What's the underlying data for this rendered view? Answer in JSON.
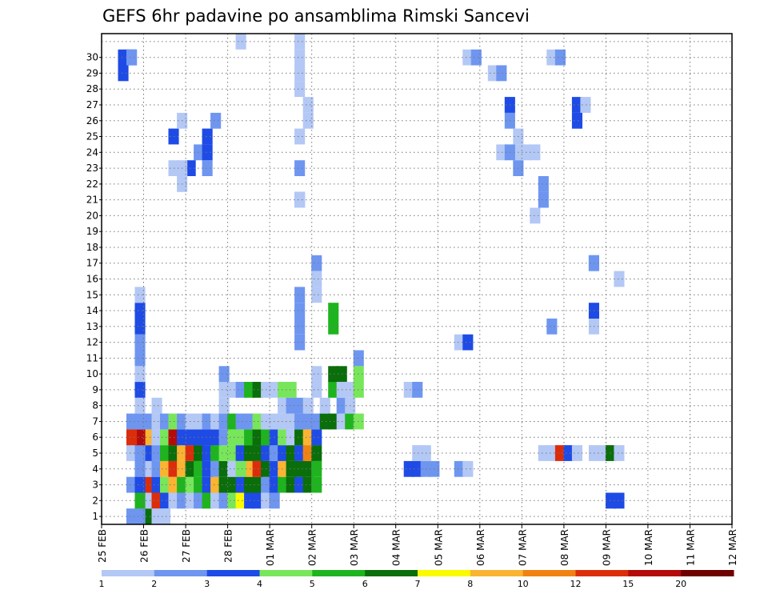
{
  "chart_data": {
    "type": "heatmap",
    "title": "GEFS 6hr padavine po ansamblima Rimski Sancevi",
    "xlabel": "",
    "ylabel": "",
    "x_ticks": [
      "25 FEB",
      "26 FEB",
      "27 FEB",
      "28 FEB",
      "01 MAR",
      "02 MAR",
      "03 MAR",
      "04 MAR",
      "05 MAR",
      "06 MAR",
      "07 MAR",
      "08 MAR",
      "09 MAR",
      "10 MAR",
      "11 MAR",
      "12 MAR"
    ],
    "y_ticks": [
      1,
      2,
      3,
      4,
      5,
      6,
      7,
      8,
      9,
      10,
      11,
      12,
      13,
      14,
      15,
      16,
      17,
      18,
      19,
      20,
      21,
      22,
      23,
      24,
      25,
      26,
      27,
      28,
      29,
      30
    ],
    "time_steps_per_day": 4,
    "members": 31,
    "grid": true,
    "colorbar": {
      "thresholds": [
        1,
        2,
        3,
        4,
        5,
        6,
        7,
        8,
        10,
        12,
        15,
        20
      ],
      "labels": [
        "1",
        "2",
        "3",
        "4",
        "5",
        "6",
        "7",
        "8",
        "10",
        "12",
        "15",
        "20"
      ],
      "colors": [
        "#b4c8f5",
        "#6e96f0",
        "#1e4be6",
        "#78e65a",
        "#1eb41e",
        "#0a6e0a",
        "#fafa00",
        "#fab432",
        "#f08214",
        "#dc2d0a",
        "#b40a0a",
        "#6e0000"
      ]
    },
    "cells": [
      [
        0,
        2,
        1
      ],
      [
        0,
        3,
        7
      ],
      [
        0,
        4,
        5
      ],
      [
        1,
        4,
        0
      ],
      [
        1,
        5,
        1
      ],
      [
        2,
        2,
        1
      ],
      [
        2,
        3,
        9
      ],
      [
        2,
        4,
        9
      ],
      [
        3,
        4,
        0
      ],
      [
        4,
        2,
        0
      ],
      [
        4,
        3,
        2
      ],
      [
        4,
        4,
        2
      ],
      [
        5,
        2,
        0
      ],
      [
        5,
        4,
        7
      ],
      [
        6,
        2,
        1
      ],
      [
        6,
        4,
        1
      ],
      [
        0,
        3,
        1
      ],
      [
        1,
        3,
        4
      ],
      [
        2,
        3,
        2
      ],
      [
        3,
        3,
        1
      ],
      [
        4,
        3,
        1
      ],
      [
        5,
        3,
        10
      ],
      [
        5,
        2,
        9
      ],
      [
        6,
        3,
        1
      ],
      [
        7,
        3,
        0
      ],
      [
        8,
        3,
        2
      ],
      [
        9,
        3,
        0
      ],
      [
        10,
        3,
        1
      ],
      [
        11,
        3,
        1
      ],
      [
        12,
        3,
        2
      ],
      [
        13,
        3,
        2
      ],
      [
        14,
        3,
        0
      ],
      [
        1,
        5,
        9
      ],
      [
        2,
        5,
        2
      ],
      [
        4,
        5,
        1
      ],
      [
        6,
        5,
        0
      ],
      [
        7,
        5,
        0
      ],
      [
        3,
        5,
        1
      ],
      [
        5,
        5,
        0
      ],
      [
        0,
        5,
        0
      ],
      [
        1,
        6,
        2
      ],
      [
        1,
        7,
        0
      ],
      [
        1,
        8,
        1
      ],
      [
        1,
        9,
        0
      ],
      [
        1,
        10,
        1
      ],
      [
        1,
        11,
        4
      ],
      [
        1,
        12,
        0
      ],
      [
        1,
        13,
        1
      ],
      [
        1,
        14,
        3
      ],
      [
        1,
        15,
        6
      ],
      [
        1,
        16,
        2
      ],
      [
        1,
        17,
        2
      ],
      [
        1,
        18,
        0
      ],
      [
        1,
        19,
        1
      ],
      [
        0,
        6,
        0
      ],
      [
        2,
        6,
        3
      ],
      [
        2,
        7,
        7
      ],
      [
        2,
        8,
        4
      ],
      [
        2,
        9,
        3
      ],
      [
        2,
        10,
        4
      ],
      [
        2,
        11,
        2
      ],
      [
        2,
        12,
        7
      ],
      [
        2,
        13,
        5
      ],
      [
        2,
        14,
        5
      ],
      [
        2,
        15,
        2
      ],
      [
        2,
        16,
        5
      ],
      [
        2,
        17,
        5
      ],
      [
        2,
        18,
        1
      ],
      [
        2,
        19,
        2
      ],
      [
        2,
        20,
        4
      ],
      [
        2,
        21,
        5
      ],
      [
        2,
        22,
        2
      ],
      [
        2,
        23,
        5
      ],
      [
        2,
        24,
        4
      ],
      [
        3,
        6,
        7
      ],
      [
        3,
        7,
        9
      ],
      [
        3,
        8,
        7
      ],
      [
        3,
        9,
        5
      ],
      [
        3,
        10,
        4
      ],
      [
        3,
        11,
        2
      ],
      [
        3,
        12,
        1
      ],
      [
        3,
        13,
        5
      ],
      [
        3,
        14,
        4
      ],
      [
        3,
        15,
        9
      ],
      [
        3,
        16,
        7
      ],
      [
        3,
        17,
        9
      ],
      [
        3,
        18,
        5
      ],
      [
        3,
        19,
        2
      ],
      [
        3,
        20,
        7
      ],
      [
        3,
        21,
        5
      ],
      [
        3,
        22,
        5
      ],
      [
        3,
        23,
        5
      ],
      [
        3,
        24,
        4
      ],
      [
        4,
        6,
        4
      ],
      [
        4,
        7,
        5
      ],
      [
        4,
        8,
        7
      ],
      [
        4,
        9,
        9
      ],
      [
        4,
        10,
        5
      ],
      [
        4,
        11,
        2
      ],
      [
        4,
        12,
        4
      ],
      [
        4,
        13,
        3
      ],
      [
        4,
        14,
        3
      ],
      [
        4,
        15,
        2
      ],
      [
        4,
        16,
        5
      ],
      [
        4,
        17,
        5
      ],
      [
        4,
        18,
        2
      ],
      [
        4,
        19,
        1
      ],
      [
        4,
        20,
        2
      ],
      [
        4,
        21,
        5
      ],
      [
        4,
        22,
        2
      ],
      [
        4,
        23,
        8
      ],
      [
        4,
        24,
        5
      ],
      [
        5,
        6,
        3
      ],
      [
        5,
        7,
        10
      ],
      [
        5,
        8,
        2
      ],
      [
        5,
        9,
        2
      ],
      [
        5,
        10,
        2
      ],
      [
        5,
        11,
        2
      ],
      [
        5,
        12,
        2
      ],
      [
        5,
        13,
        1
      ],
      [
        5,
        14,
        3
      ],
      [
        5,
        15,
        3
      ],
      [
        5,
        16,
        4
      ],
      [
        5,
        17,
        5
      ],
      [
        5,
        18,
        4
      ],
      [
        5,
        19,
        2
      ],
      [
        5,
        20,
        3
      ],
      [
        5,
        21,
        0
      ],
      [
        5,
        22,
        5
      ],
      [
        5,
        23,
        7
      ],
      [
        5,
        24,
        2
      ],
      [
        6,
        6,
        1
      ],
      [
        6,
        7,
        3
      ],
      [
        6,
        8,
        1
      ],
      [
        6,
        9,
        0
      ],
      [
        6,
        10,
        0
      ],
      [
        6,
        11,
        1
      ],
      [
        6,
        12,
        0
      ],
      [
        6,
        13,
        1
      ],
      [
        6,
        14,
        4
      ],
      [
        6,
        15,
        1
      ],
      [
        6,
        16,
        1
      ],
      [
        6,
        17,
        3
      ],
      [
        6,
        18,
        0
      ],
      [
        6,
        19,
        0
      ],
      [
        6,
        20,
        0
      ],
      [
        6,
        21,
        0
      ],
      [
        6,
        22,
        1
      ],
      [
        6,
        23,
        1
      ],
      [
        6,
        24,
        1
      ],
      [
        7,
        13,
        0
      ],
      [
        8,
        13,
        0
      ],
      [
        9,
        13,
        1
      ],
      [
        8,
        14,
        0
      ],
      [
        8,
        15,
        1
      ],
      [
        8,
        16,
        4
      ],
      [
        8,
        17,
        5
      ],
      [
        8,
        18,
        0
      ],
      [
        8,
        19,
        0
      ],
      [
        8,
        20,
        3
      ],
      [
        8,
        21,
        3
      ],
      [
        7,
        20,
        0
      ],
      [
        7,
        21,
        1
      ],
      [
        7,
        22,
        1
      ],
      [
        7,
        23,
        0
      ],
      [
        8,
        24,
        0
      ],
      [
        9,
        24,
        0
      ],
      [
        6,
        25,
        5
      ],
      [
        7,
        25,
        0
      ],
      [
        6,
        26,
        5
      ],
      [
        8,
        26,
        4
      ],
      [
        9,
        26,
        5
      ],
      [
        9,
        27,
        5
      ],
      [
        6,
        27,
        0
      ],
      [
        7,
        27,
        1
      ],
      [
        8,
        27,
        0
      ],
      [
        6,
        28,
        4
      ],
      [
        7,
        28,
        0
      ],
      [
        8,
        28,
        0
      ],
      [
        6,
        29,
        3
      ],
      [
        8,
        29,
        3
      ],
      [
        9,
        29,
        3
      ],
      [
        10,
        29,
        1
      ],
      [
        11,
        22,
        1
      ],
      [
        12,
        22,
        1
      ],
      [
        13,
        22,
        1
      ],
      [
        14,
        22,
        1
      ],
      [
        12,
        26,
        4
      ],
      [
        13,
        26,
        4
      ],
      [
        16,
        24,
        1
      ],
      [
        14,
        24,
        0
      ],
      [
        15,
        24,
        0
      ],
      [
        20,
        22,
        1
      ],
      [
        22,
        22,
        1
      ],
      [
        20,
        22,
        0
      ],
      [
        24,
        22,
        0
      ],
      [
        25,
        23,
        0
      ],
      [
        26,
        23,
        0
      ],
      [
        27,
        22,
        0
      ],
      [
        28,
        22,
        0
      ],
      [
        29,
        22,
        0
      ],
      [
        30,
        22,
        0
      ]
    ],
    "extra_cells": [
      [
        3,
        14,
        0
      ],
      [
        3,
        15,
        3
      ],
      [
        21,
        8,
        0
      ],
      [
        22,
        7,
        0
      ],
      [
        22,
        11,
        1
      ],
      [
        23,
        10,
        1
      ],
      [
        23,
        11,
        2
      ],
      [
        24,
        11,
        2
      ],
      [
        24,
        7,
        2
      ],
      [
        25,
        8,
        0
      ],
      [
        25,
        12,
        1
      ],
      [
        28,
        1,
        2
      ],
      [
        29,
        1,
        2
      ],
      [
        29,
        2,
        2
      ],
      [
        37,
        5,
        0
      ],
      [
        38,
        5,
        3
      ],
      [
        30,
        15,
        0
      ],
      [
        22,
        9,
        2
      ],
      [
        22,
        8,
        0
      ],
      [
        29,
        2,
        1
      ],
      [
        42,
        8,
        2
      ],
      [
        42,
        7,
        2
      ],
      [
        55,
        13,
        3
      ],
      [
        55,
        14,
        1
      ],
      [
        56,
        14,
        0
      ],
      [
        57,
        11,
        0
      ],
      [
        58,
        11,
        0
      ],
      [
        59,
        11,
        0
      ],
      [
        60,
        2,
        0
      ],
      [
        61,
        1,
        0
      ],
      [
        61,
        2,
        1
      ],
      [
        60,
        3,
        0
      ],
      [
        63,
        3,
        0
      ],
      [
        64,
        11,
        0
      ],
      [
        65,
        11,
        0
      ],
      [
        66,
        11,
        0
      ],
      [
        67,
        11,
        0
      ]
    ],
    "ensemble_cells_late": [
      [
        3,
        35,
        2
      ],
      [
        3,
        36,
        2
      ],
      [
        3,
        37,
        1
      ],
      [
        3,
        38,
        1
      ],
      [
        4,
        36,
        0
      ],
      [
        4,
        37,
        0
      ],
      [
        8,
        35,
        0
      ],
      [
        8,
        36,
        1
      ],
      [
        3,
        41,
        1
      ],
      [
        3,
        42,
        0
      ],
      [
        29,
        42,
        0
      ],
      [
        29,
        43,
        1
      ],
      [
        28,
        45,
        0
      ],
      [
        28,
        46,
        1
      ],
      [
        25,
        47,
        1
      ],
      [
        26,
        47,
        2
      ],
      [
        24,
        48,
        0
      ],
      [
        23,
        48,
        0
      ],
      [
        22,
        48,
        1
      ],
      [
        23,
        46,
        0
      ],
      [
        23,
        47,
        1
      ],
      [
        23,
        49,
        0
      ],
      [
        23,
        50,
        0
      ],
      [
        19,
        50,
        0
      ],
      [
        20,
        51,
        1
      ],
      [
        21,
        51,
        1
      ],
      [
        4,
        51,
        0
      ],
      [
        4,
        52,
        0
      ],
      [
        4,
        53,
        9
      ],
      [
        4,
        54,
        2
      ],
      [
        4,
        55,
        0
      ],
      [
        4,
        57,
        0
      ],
      [
        4,
        58,
        0
      ],
      [
        4,
        59,
        5
      ],
      [
        4,
        60,
        0
      ],
      [
        1,
        59,
        2
      ],
      [
        1,
        60,
        2
      ],
      [
        1,
        61,
        0
      ],
      [
        5,
        61,
        1
      ],
      [
        5,
        62,
        1
      ],
      [
        5,
        64,
        0
      ],
      [
        5,
        65,
        5
      ],
      [
        5,
        66,
        6
      ],
      [
        5,
        67,
        6
      ],
      [
        5,
        68,
        5
      ],
      [
        6,
        63,
        2
      ],
      [
        6,
        64,
        9
      ],
      [
        6,
        65,
        5
      ],
      [
        8,
        65,
        0
      ],
      [
        8,
        67,
        5
      ],
      [
        8,
        68,
        0
      ],
      [
        2,
        65,
        0
      ],
      [
        2,
        66,
        0
      ],
      [
        2,
        67,
        2
      ],
      [
        2,
        68,
        2
      ],
      [
        1,
        63,
        4
      ],
      [
        1,
        64,
        9
      ],
      [
        1,
        65,
        0
      ],
      [
        16,
        65,
        0
      ],
      [
        15,
        64,
        0
      ],
      [
        15,
        60,
        0
      ],
      [
        15,
        61,
        1
      ],
      [
        15,
        62,
        2
      ],
      [
        15,
        63,
        4
      ],
      [
        15,
        66,
        0
      ],
      [
        14,
        61,
        4
      ],
      [
        14,
        63,
        0
      ],
      [
        13,
        61,
        1
      ],
      [
        12,
        61,
        1
      ],
      [
        12,
        57,
        0
      ],
      [
        13,
        57,
        2
      ],
      [
        12,
        52,
        1
      ],
      [
        11,
        41,
        0
      ],
      [
        11,
        42,
        2
      ],
      [
        10,
        62,
        0
      ],
      [
        16,
        57,
        1
      ],
      [
        18,
        64,
        0
      ],
      [
        19,
        65,
        0
      ],
      [
        20,
        62,
        2
      ],
      [
        21,
        62,
        2
      ],
      [
        21,
        63,
        4
      ],
      [
        21,
        66,
        2
      ],
      [
        20,
        66,
        2
      ],
      [
        21,
        65,
        0
      ],
      [
        20,
        65,
        0
      ],
      [
        25,
        62,
        4
      ],
      [
        25,
        63,
        1
      ],
      [
        24,
        61,
        0
      ],
      [
        25,
        55,
        2
      ],
      [
        26,
        55,
        2
      ],
      [
        26,
        56,
        0
      ],
      [
        27,
        62,
        5
      ],
      [
        27,
        63,
        5
      ],
      [
        28,
        62,
        3
      ],
      [
        28,
        63,
        4
      ],
      [
        28,
        64,
        0
      ],
      [
        28,
        67,
        0
      ],
      [
        29,
        61,
        0
      ],
      [
        29,
        62,
        3
      ],
      [
        29,
        64,
        3
      ],
      [
        28,
        70,
        0
      ],
      [
        29,
        64,
        0
      ],
      [
        30,
        63,
        3
      ],
      [
        30,
        64,
        2
      ],
      [
        30,
        65,
        2
      ],
      [
        29,
        52,
        0
      ],
      [
        29,
        53,
        1
      ],
      [
        28,
        69,
        2
      ],
      [
        29,
        70,
        1
      ],
      [
        30,
        65,
        5
      ],
      [
        30,
        66,
        2
      ],
      [
        25,
        65,
        2
      ],
      [
        25,
        68,
        5
      ],
      [
        27,
        64,
        5
      ],
      [
        16,
        57,
        1
      ]
    ]
  }
}
